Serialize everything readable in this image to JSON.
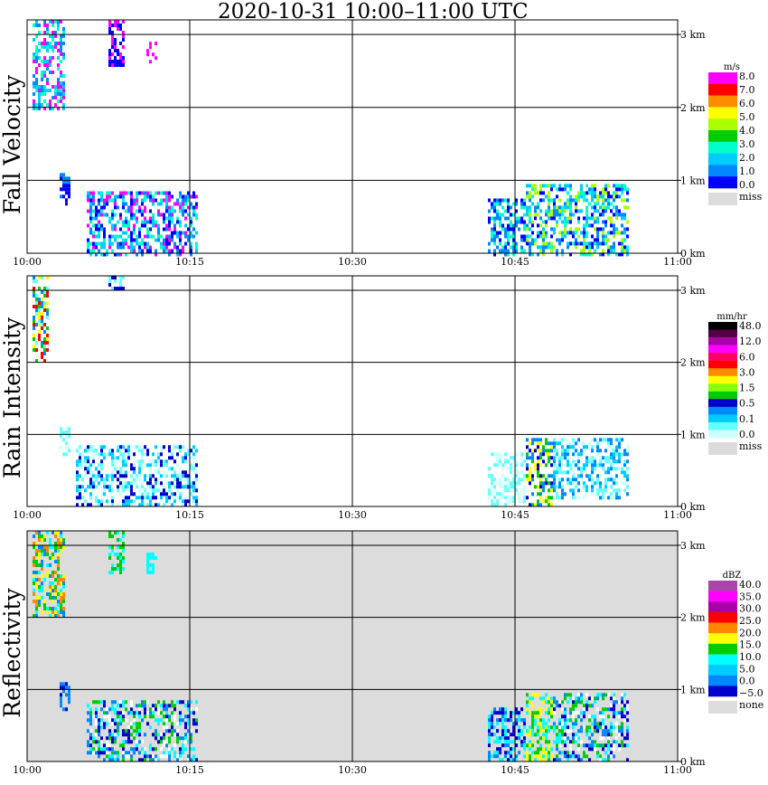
{
  "title": "2020-10-31   10:00–11:00 UTC",
  "x_ticks": [
    "10:00",
    "10:15",
    "10:30",
    "10:45",
    "11:00"
  ],
  "chart_data": [
    {
      "type": "heatmap",
      "ylabel": "Fall Velocity",
      "y_ticks": [
        "3 km",
        "2 km",
        "1 km",
        "0 km"
      ],
      "legend_unit": "m/s",
      "legend_labels": [
        "8.0",
        "7.0",
        "6.0",
        "5.0",
        "4.0",
        "3.0",
        "2.0",
        "1.0",
        "0.0"
      ],
      "colors": [
        "#ff00ff",
        "#ff0000",
        "#ff8c00",
        "#ffff00",
        "#aaff00",
        "#00cc00",
        "#00ffcc",
        "#00ccff",
        "#0088ff",
        "#0000ff"
      ],
      "missing_label": "miss",
      "xlim_minutes": [
        0,
        60
      ],
      "ylim_km": [
        0,
        3.2
      ],
      "patches": [
        {
          "t0": 0.5,
          "t1": 3.5,
          "h0": 2.0,
          "h1": 3.2,
          "colors": [
            "#ff00ff",
            "#0088ff",
            "#00ffcc",
            "#00ccff"
          ]
        },
        {
          "t0": 7.5,
          "t1": 9.0,
          "h0": 2.6,
          "h1": 3.2,
          "colors": [
            "#ff00ff",
            "#0000ff"
          ]
        },
        {
          "t0": 11,
          "t1": 12,
          "h0": 2.6,
          "h1": 2.9,
          "colors": [
            "#ff00ff"
          ]
        },
        {
          "t0": 3,
          "t1": 3.8,
          "h0": 0.7,
          "h1": 1.1,
          "colors": [
            "#0088ff",
            "#0000ff"
          ]
        },
        {
          "t0": 5.5,
          "t1": 15.5,
          "h0": 0.0,
          "h1": 0.85,
          "colors": [
            "#0000ff",
            "#0088ff",
            "#00ffcc",
            "#00ccff",
            "#ff00ff"
          ]
        },
        {
          "t0": 42.5,
          "t1": 46,
          "h0": 0.0,
          "h1": 0.75,
          "colors": [
            "#0000ff",
            "#0088ff",
            "#00ffcc"
          ]
        },
        {
          "t0": 46,
          "t1": 55.5,
          "h0": 0.0,
          "h1": 0.95,
          "colors": [
            "#0000ff",
            "#0088ff",
            "#00ffcc",
            "#00ccff",
            "#aaff00"
          ]
        }
      ]
    },
    {
      "type": "heatmap",
      "ylabel": "Rain Intensity",
      "y_ticks": [
        "3 km",
        "2 km",
        "1 km",
        "0 km"
      ],
      "legend_unit": "mm/hr",
      "legend_labels": [
        "48.0",
        "12.0",
        "6.0",
        "3.0",
        "1.5",
        "0.5",
        "0.1",
        "0.0"
      ],
      "colors": [
        "#000000",
        "#550044",
        "#aa00aa",
        "#ff00ff",
        "#ff0066",
        "#ff0000",
        "#ff8800",
        "#ffff00",
        "#88ff00",
        "#00cc00",
        "#0000cc",
        "#0088ff",
        "#00ccff",
        "#66ffff",
        "#ccffff"
      ],
      "missing_label": "miss",
      "xlim_minutes": [
        0,
        60
      ],
      "ylim_km": [
        0,
        3.2
      ],
      "patches": [
        {
          "t0": 0.5,
          "t1": 2.0,
          "h0": 2.0,
          "h1": 3.2,
          "colors": [
            "#00cc00",
            "#ffff00",
            "#0088ff",
            "#66ffff",
            "#ff0000"
          ]
        },
        {
          "t0": 7.5,
          "t1": 9.0,
          "h0": 3.0,
          "h1": 3.2,
          "colors": [
            "#0000cc",
            "#66ffff"
          ]
        },
        {
          "t0": 3,
          "t1": 3.8,
          "h0": 0.7,
          "h1": 1.1,
          "colors": [
            "#ccffff",
            "#66ffff"
          ]
        },
        {
          "t0": 4.5,
          "t1": 15.5,
          "h0": 0.0,
          "h1": 0.85,
          "colors": [
            "#66ffff",
            "#ccffff",
            "#00ccff",
            "#0000cc"
          ]
        },
        {
          "t0": 42.5,
          "t1": 46,
          "h0": 0.0,
          "h1": 0.75,
          "colors": [
            "#ccffff",
            "#66ffff"
          ]
        },
        {
          "t0": 46,
          "t1": 48.5,
          "h0": 0.0,
          "h1": 0.95,
          "colors": [
            "#0000cc",
            "#00cc00",
            "#ffff00",
            "#0088ff"
          ]
        },
        {
          "t0": 48.5,
          "t1": 55.5,
          "h0": 0.1,
          "h1": 0.95,
          "colors": [
            "#66ffff",
            "#ccffff",
            "#00ccff",
            "#0088ff"
          ]
        }
      ]
    },
    {
      "type": "heatmap",
      "ylabel": "Reflectivity",
      "y_ticks": [
        "3 km",
        "2 km",
        "1 km",
        "0 km"
      ],
      "legend_unit": "dBZ",
      "legend_labels": [
        "40.0",
        "35.0",
        "30.0",
        "25.0",
        "20.0",
        "15.0",
        "10.0",
        "5.0",
        "0.0",
        "−5.0"
      ],
      "colors": [
        "#aa44aa",
        "#ff00ff",
        "#aa00aa",
        "#ff0000",
        "#ff8800",
        "#ffff00",
        "#00cc00",
        "#00ffff",
        "#00ccff",
        "#0088ff",
        "#0000cc"
      ],
      "missing_label": "none",
      "xlim_minutes": [
        0,
        60
      ],
      "ylim_km": [
        0,
        3.2
      ],
      "patches": [
        {
          "t0": 0.5,
          "t1": 3.5,
          "h0": 2.0,
          "h1": 3.2,
          "colors": [
            "#ff8800",
            "#ffff00",
            "#00cc00",
            "#00ffff",
            "#0088ff"
          ]
        },
        {
          "t0": 7.5,
          "t1": 9.0,
          "h0": 2.6,
          "h1": 3.2,
          "colors": [
            "#00cc00",
            "#00ffff"
          ]
        },
        {
          "t0": 11,
          "t1": 12,
          "h0": 2.6,
          "h1": 2.9,
          "colors": [
            "#00ffff"
          ]
        },
        {
          "t0": 3,
          "t1": 3.8,
          "h0": 0.7,
          "h1": 1.1,
          "colors": [
            "#0088ff",
            "#0000cc"
          ]
        },
        {
          "t0": 5.5,
          "t1": 15.5,
          "h0": 0.0,
          "h1": 0.85,
          "colors": [
            "#00ffff",
            "#0088ff",
            "#0000cc",
            "#00cc00",
            "#ffffff"
          ]
        },
        {
          "t0": 42.5,
          "t1": 46,
          "h0": 0.0,
          "h1": 0.75,
          "colors": [
            "#0088ff",
            "#0000cc",
            "#00ffff"
          ]
        },
        {
          "t0": 46,
          "t1": 48.5,
          "h0": 0.0,
          "h1": 0.95,
          "colors": [
            "#ffff00",
            "#00cc00",
            "#00ffff"
          ]
        },
        {
          "t0": 48.5,
          "t1": 55.5,
          "h0": 0.0,
          "h1": 0.95,
          "colors": [
            "#00ffff",
            "#0088ff",
            "#0000cc",
            "#00cc00",
            "#ffffff"
          ]
        }
      ]
    }
  ]
}
